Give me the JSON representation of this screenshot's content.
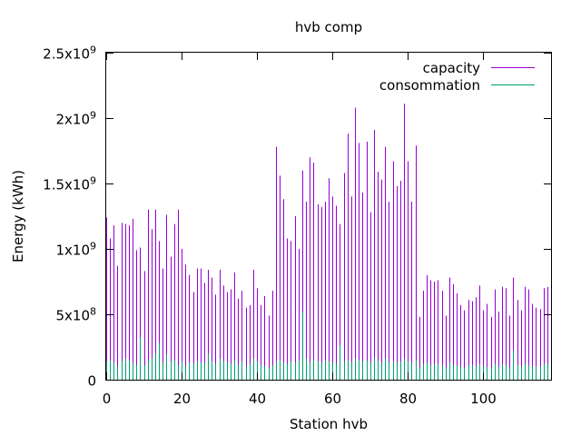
{
  "chart_data": {
    "type": "bar",
    "title": "hvb comp",
    "xlabel": "Station hvb",
    "ylabel": "Energy (kWh)",
    "xlim": [
      0,
      118
    ],
    "ylim": [
      0,
      2500000000
    ],
    "x_ticks": [
      0,
      20,
      40,
      60,
      80,
      100
    ],
    "y_ticks": [
      {
        "value": 0,
        "mantissa": "0",
        "exp": ""
      },
      {
        "value": 500000000,
        "mantissa": "5x10",
        "exp": "8"
      },
      {
        "value": 1000000000,
        "mantissa": "1x10",
        "exp": "9"
      },
      {
        "value": 1500000000,
        "mantissa": "1.5x10",
        "exp": "9"
      },
      {
        "value": 2000000000,
        "mantissa": "2x10",
        "exp": "9"
      },
      {
        "value": 2500000000,
        "mantissa": "2.5x10",
        "exp": "9"
      }
    ],
    "grid": false,
    "legend_position": "top-right",
    "series": [
      {
        "name": "capacity",
        "color": "#9400d3",
        "values": [
          1240000000,
          1080000000,
          1180000000,
          870000000,
          1200000000,
          1190000000,
          1180000000,
          1230000000,
          990000000,
          1010000000,
          830000000,
          1300000000,
          1150000000,
          1300000000,
          1060000000,
          850000000,
          1260000000,
          940000000,
          1190000000,
          1300000000,
          1000000000,
          880000000,
          800000000,
          670000000,
          850000000,
          850000000,
          740000000,
          840000000,
          780000000,
          650000000,
          840000000,
          720000000,
          670000000,
          690000000,
          820000000,
          620000000,
          680000000,
          550000000,
          570000000,
          840000000,
          700000000,
          570000000,
          640000000,
          490000000,
          680000000,
          1780000000,
          1560000000,
          1380000000,
          1080000000,
          1060000000,
          1250000000,
          1000000000,
          1600000000,
          1360000000,
          1700000000,
          1660000000,
          1340000000,
          1320000000,
          1360000000,
          1540000000,
          1400000000,
          1330000000,
          1190000000,
          1580000000,
          1880000000,
          1400000000,
          2080000000,
          1810000000,
          1430000000,
          1820000000,
          1280000000,
          1910000000,
          1590000000,
          1530000000,
          1780000000,
          1360000000,
          1670000000,
          1480000000,
          1520000000,
          2110000000,
          1670000000,
          1360000000,
          1790000000,
          480000000,
          680000000,
          800000000,
          760000000,
          750000000,
          760000000,
          680000000,
          490000000,
          780000000,
          730000000,
          660000000,
          570000000,
          530000000,
          610000000,
          600000000,
          630000000,
          720000000,
          530000000,
          580000000,
          480000000,
          690000000,
          520000000,
          710000000,
          700000000,
          490000000,
          780000000,
          610000000,
          530000000,
          710000000,
          690000000,
          580000000,
          550000000,
          540000000,
          700000000,
          710000000
        ]
      },
      {
        "name": "consommation",
        "color": "#009e73",
        "values": [
          140000000,
          150000000,
          130000000,
          100000000,
          140000000,
          160000000,
          150000000,
          130000000,
          110000000,
          320000000,
          110000000,
          150000000,
          160000000,
          200000000,
          280000000,
          130000000,
          190000000,
          140000000,
          150000000,
          110000000,
          140000000,
          100000000,
          130000000,
          120000000,
          140000000,
          130000000,
          130000000,
          200000000,
          140000000,
          120000000,
          160000000,
          140000000,
          130000000,
          120000000,
          150000000,
          110000000,
          140000000,
          100000000,
          120000000,
          160000000,
          140000000,
          110000000,
          100000000,
          90000000,
          110000000,
          140000000,
          150000000,
          130000000,
          120000000,
          140000000,
          130000000,
          150000000,
          520000000,
          160000000,
          130000000,
          150000000,
          140000000,
          130000000,
          150000000,
          140000000,
          130000000,
          120000000,
          260000000,
          140000000,
          150000000,
          130000000,
          160000000,
          150000000,
          140000000,
          150000000,
          130000000,
          170000000,
          140000000,
          130000000,
          160000000,
          130000000,
          140000000,
          130000000,
          140000000,
          160000000,
          140000000,
          130000000,
          150000000,
          90000000,
          120000000,
          130000000,
          110000000,
          120000000,
          120000000,
          110000000,
          90000000,
          130000000,
          110000000,
          110000000,
          100000000,
          90000000,
          110000000,
          110000000,
          100000000,
          120000000,
          100000000,
          100000000,
          90000000,
          120000000,
          100000000,
          120000000,
          110000000,
          90000000,
          220000000,
          110000000,
          100000000,
          120000000,
          110000000,
          100000000,
          100000000,
          100000000,
          120000000,
          120000000
        ]
      }
    ]
  }
}
